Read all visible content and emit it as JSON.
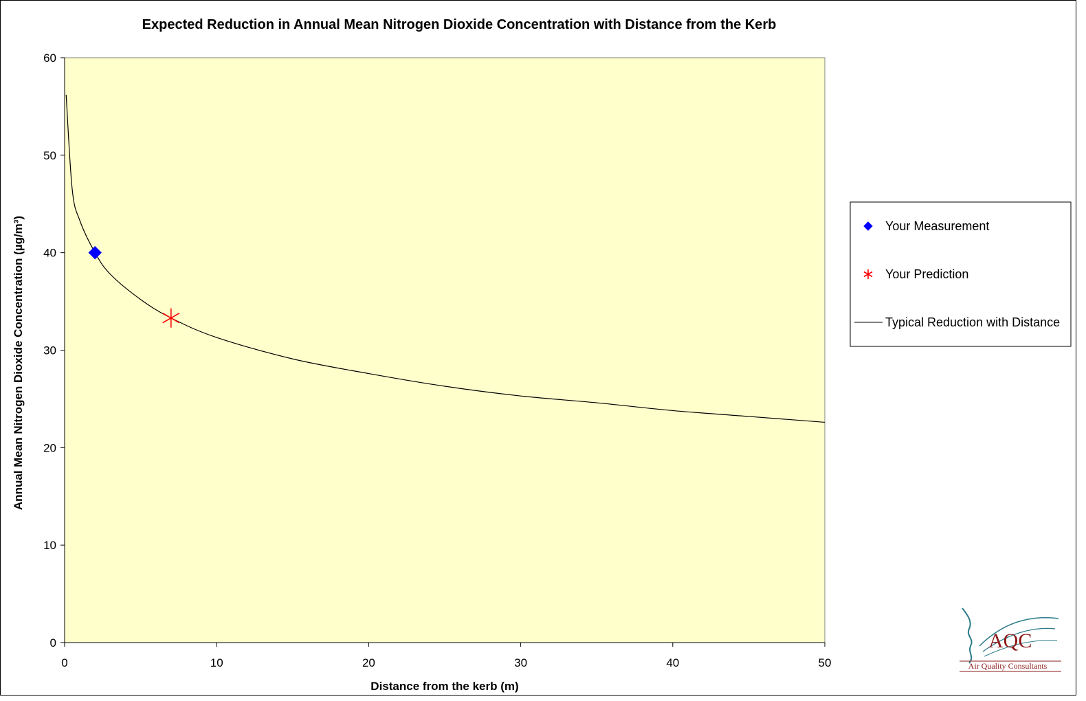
{
  "chart_data": {
    "type": "scatter",
    "title": "Expected Reduction in Annual Mean Nitrogen Dioxide Concentration with Distance from the Kerb",
    "xlabel": "Distance from the kerb (m)",
    "ylabel": "Annual Mean Nitrogen Dioxide Concentration (µg/m³)",
    "xlim": [
      0,
      50
    ],
    "ylim": [
      0,
      60
    ],
    "x_ticks": [
      "0",
      "10",
      "20",
      "30",
      "40",
      "50"
    ],
    "y_ticks": [
      "0",
      "10",
      "20",
      "30",
      "40",
      "50",
      "60"
    ],
    "grid": false,
    "legend_position": "right",
    "plot_background": "#ffffcc",
    "series": [
      {
        "name": "Your Measurement",
        "marker": "diamond",
        "color": "#0000ff",
        "points": [
          {
            "x": 2,
            "y": 40
          }
        ]
      },
      {
        "name": "Your Prediction",
        "marker": "asterisk",
        "color": "#ff0000",
        "points": [
          {
            "x": 7,
            "y": 33.3
          }
        ]
      },
      {
        "name": "Typical Reduction with Distance",
        "marker": "line",
        "color": "#000000",
        "points": [
          {
            "x": 0.1,
            "y": 56.2
          },
          {
            "x": 0.5,
            "y": 46.5
          },
          {
            "x": 1,
            "y": 43.3
          },
          {
            "x": 2,
            "y": 40
          },
          {
            "x": 3,
            "y": 37.8
          },
          {
            "x": 5,
            "y": 35.2
          },
          {
            "x": 7,
            "y": 33.3
          },
          {
            "x": 10,
            "y": 31.3
          },
          {
            "x": 15,
            "y": 29.1
          },
          {
            "x": 20,
            "y": 27.6
          },
          {
            "x": 25,
            "y": 26.3
          },
          {
            "x": 30,
            "y": 25.3
          },
          {
            "x": 35,
            "y": 24.6
          },
          {
            "x": 40,
            "y": 23.8
          },
          {
            "x": 45,
            "y": 23.2
          },
          {
            "x": 50,
            "y": 22.6
          }
        ]
      }
    ]
  },
  "logo": {
    "caption": "Air Quality Consultants",
    "letters": "AQC"
  }
}
